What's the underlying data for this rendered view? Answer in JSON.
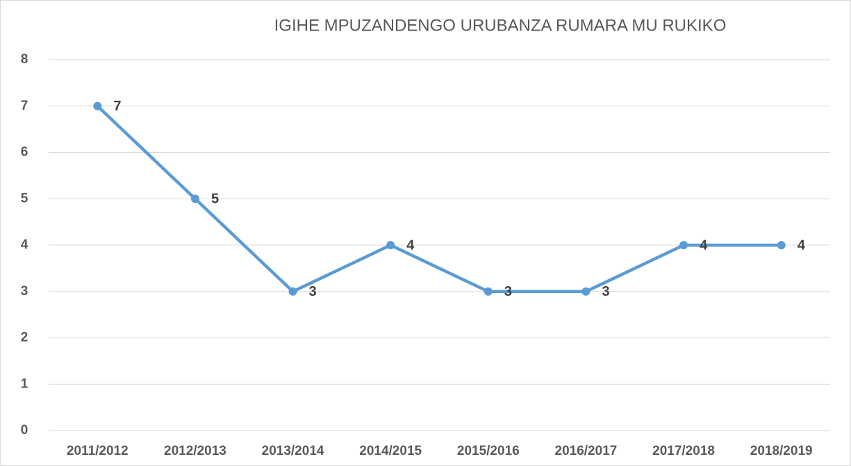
{
  "chart_data": {
    "type": "line",
    "title": "IGIHE MPUZANDENGO URUBANZA RUMARA MU RUKIKO",
    "categories": [
      "2011/2012",
      "2012/2013",
      "2013/2014",
      "2014/2015",
      "2015/2016",
      "2016/2017",
      "2017/2018",
      "2018/2019"
    ],
    "values": [
      7,
      5,
      3,
      4,
      3,
      3,
      4,
      4
    ],
    "color": "#5b9bd5",
    "ylim": [
      0,
      8
    ],
    "yticks": [
      0,
      1,
      2,
      3,
      4,
      5,
      6,
      7,
      8
    ],
    "grid": true
  }
}
